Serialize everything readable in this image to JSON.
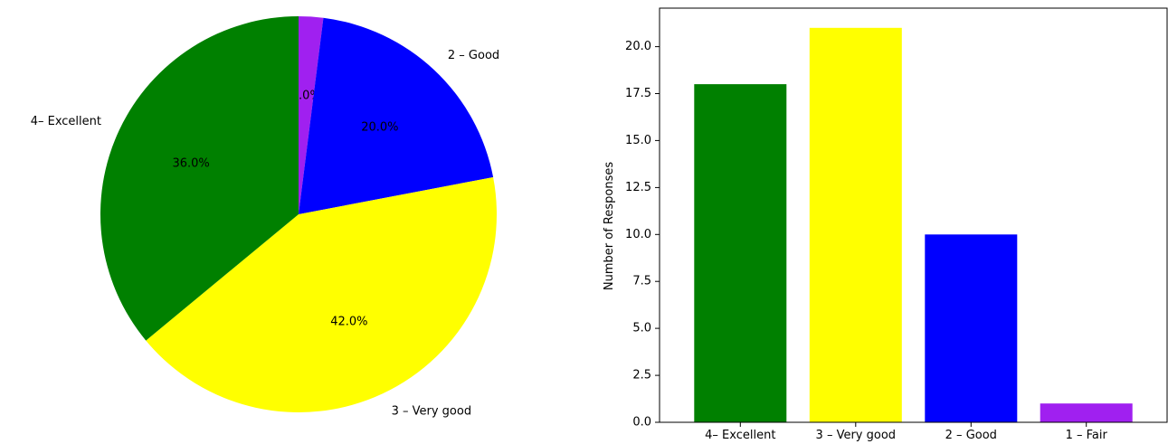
{
  "chart_data": [
    {
      "type": "pie",
      "title": "",
      "categories": [
        "1 – Fair",
        "2 – Good",
        "3 – Very good",
        "4– Excellent"
      ],
      "values": [
        2.0,
        20.0,
        42.0,
        36.0
      ],
      "value_labels": [
        "2.0%",
        "20.0%",
        "42.0%",
        "36.0%"
      ],
      "colors": [
        "#a020f0",
        "#0000ff",
        "#ffff00",
        "#008000"
      ],
      "start_angle_deg": 90,
      "direction": "clockwise",
      "legend": "none"
    },
    {
      "type": "bar",
      "title": "",
      "xlabel": "",
      "ylabel": "Number of Responses",
      "categories": [
        "4– Excellent",
        "3 – Very good",
        "2 – Good",
        "1 – Fair"
      ],
      "values": [
        18,
        21,
        10,
        1
      ],
      "colors": [
        "#008000",
        "#ffff00",
        "#0000ff",
        "#a020f0"
      ],
      "ylim": [
        0,
        22.05
      ],
      "yticks": [
        0.0,
        2.5,
        5.0,
        7.5,
        10.0,
        12.5,
        15.0,
        17.5,
        20.0
      ],
      "ytick_labels": [
        "0.0",
        "2.5",
        "5.0",
        "7.5",
        "10.0",
        "12.5",
        "15.0",
        "17.5",
        "20.0"
      ],
      "grid": false,
      "legend": "none"
    }
  ]
}
